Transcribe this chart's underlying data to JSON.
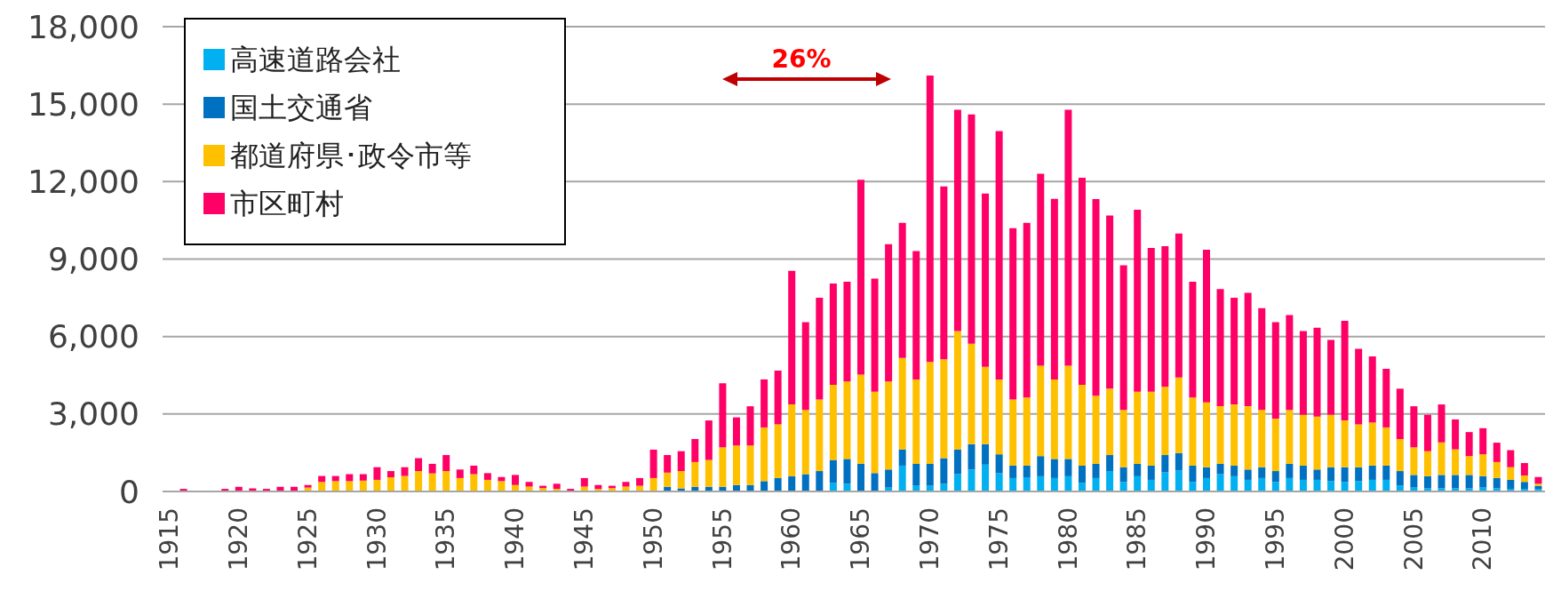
{
  "chart_data": {
    "type": "bar",
    "stacked": true,
    "categories": [
      "1915",
      null,
      null,
      null,
      null,
      "1920",
      null,
      null,
      null,
      null,
      "1925",
      null,
      null,
      null,
      null,
      "1930",
      null,
      null,
      null,
      null,
      "1935",
      null,
      null,
      null,
      null,
      "1940",
      null,
      null,
      null,
      null,
      "1945",
      null,
      null,
      null,
      null,
      "1950",
      null,
      null,
      null,
      null,
      "1955",
      null,
      null,
      null,
      null,
      "1960",
      null,
      null,
      null,
      null,
      "1965",
      null,
      null,
      null,
      null,
      "1970",
      null,
      null,
      null,
      null,
      "1975",
      null,
      null,
      null,
      null,
      "1980",
      null,
      null,
      null,
      null,
      "1985",
      null,
      null,
      null,
      null,
      "1990",
      null,
      null,
      null,
      null,
      "1995",
      null,
      null,
      null,
      null,
      "2000",
      null,
      null,
      null,
      null,
      "2005",
      null,
      null,
      null,
      null,
      "2010",
      null,
      null,
      null,
      null
    ],
    "series": [
      {
        "name": "高速道路会社",
        "color": "#00b0f0",
        "values": [
          0,
          0,
          0,
          0,
          0,
          0,
          0,
          0,
          0,
          0,
          0,
          0,
          0,
          0,
          0,
          0,
          0,
          0,
          0,
          0,
          0,
          0,
          0,
          0,
          0,
          0,
          0,
          0,
          0,
          0,
          0,
          0,
          0,
          0,
          0,
          0,
          0,
          0,
          0,
          0,
          0,
          0,
          0,
          0,
          0,
          0,
          0,
          0,
          340,
          300,
          0,
          0,
          150,
          1000,
          220,
          220,
          300,
          670,
          850,
          1040,
          710,
          520,
          550,
          590,
          520,
          590,
          340,
          520,
          790,
          370,
          590,
          450,
          740,
          820,
          370,
          520,
          670,
          590,
          450,
          520,
          370,
          520,
          450,
          450,
          400,
          370,
          400,
          450,
          450,
          220,
          150,
          120,
          120,
          120,
          120,
          150,
          120,
          100,
          100,
          100
        ]
      },
      {
        "name": "国土交通省",
        "color": "#0070c0",
        "values": [
          0,
          0,
          0,
          0,
          0,
          0,
          0,
          0,
          0,
          0,
          0,
          0,
          0,
          0,
          0,
          0,
          0,
          0,
          0,
          0,
          0,
          0,
          0,
          0,
          0,
          0,
          0,
          0,
          0,
          0,
          0,
          0,
          0,
          0,
          0,
          0,
          180,
          120,
          180,
          180,
          180,
          250,
          250,
          400,
          520,
          590,
          670,
          790,
          880,
          960,
          1070,
          710,
          700,
          630,
          850,
          850,
          990,
          960,
          980,
          790,
          730,
          480,
          450,
          780,
          740,
          670,
          660,
          550,
          620,
          570,
          480,
          550,
          670,
          670,
          630,
          420,
          400,
          410,
          400,
          420,
          420,
          550,
          550,
          400,
          540,
          570,
          540,
          550,
          550,
          570,
          490,
          470,
          520,
          520,
          520,
          440,
          400,
          350,
          270,
          120
        ]
      },
      {
        "name": "都道府県･政令市等",
        "color": "#ffc000",
        "values": [
          0,
          0,
          0,
          0,
          0,
          0,
          0,
          0,
          null,
          null,
          150,
          370,
          400,
          400,
          420,
          450,
          550,
          600,
          790,
          700,
          790,
          520,
          670,
          450,
          400,
          250,
          190,
          130,
          100,
          0,
          190,
          100,
          130,
          190,
          220,
          520,
          550,
          670,
          960,
          1040,
          1530,
          1530,
          1530,
          2080,
          2080,
          2780,
          2490,
          2770,
          2910,
          3000,
          3460,
          3150,
          3410,
          3540,
          3270,
          3950,
          3830,
          4580,
          3890,
          3000,
          2900,
          2560,
          2640,
          3500,
          3080,
          3610,
          3130,
          2640,
          2570,
          2220,
          2790,
          2860,
          2640,
          2920,
          2640,
          2510,
          2230,
          2370,
          2450,
          2220,
          2030,
          2090,
          1970,
          2050,
          2030,
          1810,
          1660,
          1670,
          1480,
          1240,
          1070,
          970,
          1260,
          990,
          730,
          850,
          620,
          490,
          250,
          80
        ]
      },
      {
        "name": "市区町村",
        "color": "#ff0066",
        "values": [
          0,
          100,
          0,
          0,
          100,
          180,
          120,
          100,
          180,
          180,
          100,
          230,
          200,
          270,
          250,
          490,
          240,
          340,
          500,
          370,
          620,
          330,
          330,
          260,
          160,
          390,
          180,
          90,
          200,
          100,
          330,
          150,
          90,
          180,
          300,
          1100,
          680,
          770,
          890,
          1530,
          2480,
          1090,
          1520,
          1860,
          2080,
          5170,
          3400,
          3940,
          3920,
          3860,
          7540,
          4380,
          5320,
          5230,
          4970,
          11090,
          6690,
          8570,
          8880,
          6710,
          9620,
          6640,
          6760,
          7430,
          6990,
          9910,
          8020,
          7610,
          6710,
          5600,
          7050,
          5570,
          5450,
          5580,
          4480,
          5910,
          4540,
          4130,
          4390,
          3940,
          3740,
          3670,
          3240,
          3440,
          2900,
          3860,
          2920,
          2560,
          2270,
          1950,
          1590,
          1410,
          1470,
          1160,
          930,
          1010,
          750,
          660,
          480,
          260
        ]
      }
    ],
    "ylim": [
      0,
      18000
    ],
    "yticks": [
      0,
      {
        "value": 3000,
        "label": "3,000"
      },
      {
        "value": 6000,
        "label": "6,000"
      },
      {
        "value": 9000,
        "label": "9,000"
      },
      {
        "value": 12000,
        "label": "12,000"
      },
      {
        "value": 15000,
        "label": "15,000"
      },
      {
        "value": 18000,
        "label": "18,000"
      }
    ],
    "grid": "y",
    "legend": "top left",
    "annotations": [
      "26%"
    ]
  }
}
